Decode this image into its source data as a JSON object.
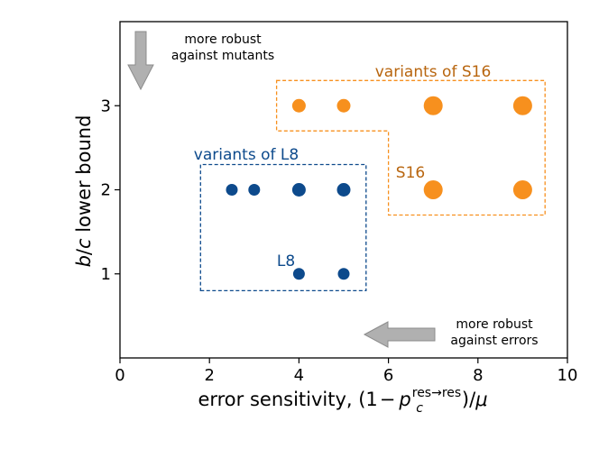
{
  "chart_data": {
    "type": "scatter",
    "x_axis": {
      "label_prefix": "error sensitivity, (1",
      "label_minus": "−",
      "label_p": "p",
      "label_sub": "c",
      "label_sup": "res→res",
      "label_suffix": ")/",
      "label_mu": "μ",
      "range": [
        0,
        10
      ],
      "ticks": [
        0,
        2,
        4,
        6,
        8,
        10
      ]
    },
    "y_axis": {
      "label_italic_b": "b",
      "label_slash": "/",
      "label_italic_c": "c",
      "label_rest": " lower bound",
      "range": [
        0,
        4
      ],
      "ticks": [
        1,
        2,
        3
      ]
    },
    "series": [
      {
        "name": "variants of L8",
        "color": "#0d4a8c",
        "points": [
          {
            "x": 2.5,
            "y": 2,
            "size": "small"
          },
          {
            "x": 3,
            "y": 2,
            "size": "small"
          },
          {
            "x": 4,
            "y": 2,
            "size": "medium"
          },
          {
            "x": 5,
            "y": 2,
            "size": "medium"
          },
          {
            "x": 4,
            "y": 1,
            "size": "small"
          },
          {
            "x": 5,
            "y": 1,
            "size": "small"
          }
        ]
      },
      {
        "name": "variants of S16",
        "color": "#f7901e",
        "points": [
          {
            "x": 4,
            "y": 3,
            "size": "medium"
          },
          {
            "x": 5,
            "y": 3,
            "size": "medium"
          },
          {
            "x": 7,
            "y": 3,
            "size": "large"
          },
          {
            "x": 9,
            "y": 3,
            "size": "large"
          },
          {
            "x": 7,
            "y": 2,
            "size": "large"
          },
          {
            "x": 9,
            "y": 2,
            "size": "large"
          }
        ]
      }
    ],
    "regions": [
      {
        "name": "variants of L8",
        "label": "variants of L8",
        "color": "#0d4a8c",
        "polygon": [
          [
            1.8,
            0.8
          ],
          [
            5.5,
            0.8
          ],
          [
            5.5,
            2.3
          ],
          [
            1.8,
            2.3
          ]
        ]
      },
      {
        "name": "variants of S16",
        "label": "variants of S16",
        "color": "#f7901e",
        "polygon": [
          [
            3.5,
            3.3
          ],
          [
            9.5,
            3.3
          ],
          [
            9.5,
            1.7
          ],
          [
            6,
            1.7
          ],
          [
            6,
            2.7
          ],
          [
            3.5,
            2.7
          ]
        ]
      }
    ],
    "annotations": {
      "point_labels": [
        {
          "text": "L8",
          "x": 3.7,
          "y": 1.15,
          "color": "#0d4a8c"
        },
        {
          "text": "S16",
          "x": 6.5,
          "y": 2.2,
          "color": "#b8650e"
        }
      ],
      "arrow_down": {
        "line1": "more robust",
        "line2": "against mutants"
      },
      "arrow_left": {
        "line1": "more robust",
        "line2": "against errors"
      }
    }
  }
}
